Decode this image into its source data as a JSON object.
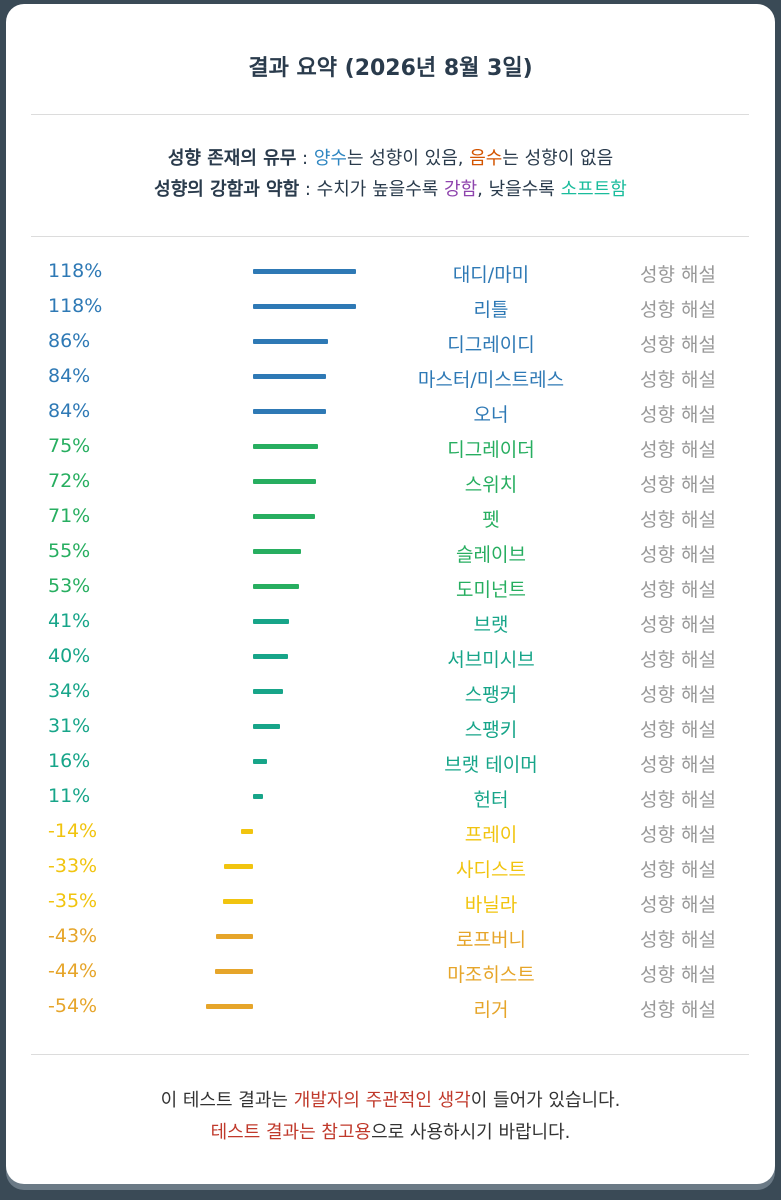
{
  "title": "결과 요약 (2026년 8월 3일)",
  "legend": {
    "line1": {
      "label": "성향 존재의 유무",
      "sep": " : ",
      "positive": "양수",
      "text_a": "는 성향이 있음, ",
      "negative": "음수",
      "text_b": "는 성향이 없음"
    },
    "line2": {
      "label": "성향의 강함과 약함",
      "sep": " : 수치가 높을수록 ",
      "strong": "강함",
      "text_a": ", 낮을수록 ",
      "soft": "소프트함"
    }
  },
  "colors": {
    "blue": "#2e86c1",
    "orange": "#d35400",
    "purple": "#8e44ad",
    "teal": "#1abc9c",
    "red": "#c0392b"
  },
  "results": [
    {
      "percent": "118%",
      "value": 118,
      "name": "대디/마미",
      "desc": "성향 해설",
      "color": "#2e79b5"
    },
    {
      "percent": "118%",
      "value": 118,
      "name": "리틀",
      "desc": "성향 해설",
      "color": "#2e79b5"
    },
    {
      "percent": "86%",
      "value": 86,
      "name": "디그레이디",
      "desc": "성향 해설",
      "color": "#2e79b5"
    },
    {
      "percent": "84%",
      "value": 84,
      "name": "마스터/미스트레스",
      "desc": "성향 해설",
      "color": "#2e79b5"
    },
    {
      "percent": "84%",
      "value": 84,
      "name": "오너",
      "desc": "성향 해설",
      "color": "#2e79b5"
    },
    {
      "percent": "75%",
      "value": 75,
      "name": "디그레이더",
      "desc": "성향 해설",
      "color": "#27ae60"
    },
    {
      "percent": "72%",
      "value": 72,
      "name": "스위치",
      "desc": "성향 해설",
      "color": "#27ae60"
    },
    {
      "percent": "71%",
      "value": 71,
      "name": "펫",
      "desc": "성향 해설",
      "color": "#27ae60"
    },
    {
      "percent": "55%",
      "value": 55,
      "name": "슬레이브",
      "desc": "성향 해설",
      "color": "#27ae60"
    },
    {
      "percent": "53%",
      "value": 53,
      "name": "도미넌트",
      "desc": "성향 해설",
      "color": "#27ae60"
    },
    {
      "percent": "41%",
      "value": 41,
      "name": "브랫",
      "desc": "성향 해설",
      "color": "#17a589"
    },
    {
      "percent": "40%",
      "value": 40,
      "name": "서브미시브",
      "desc": "성향 해설",
      "color": "#17a589"
    },
    {
      "percent": "34%",
      "value": 34,
      "name": "스팽커",
      "desc": "성향 해설",
      "color": "#17a589"
    },
    {
      "percent": "31%",
      "value": 31,
      "name": "스팽키",
      "desc": "성향 해설",
      "color": "#17a589"
    },
    {
      "percent": "16%",
      "value": 16,
      "name": "브랫 테이머",
      "desc": "성향 해설",
      "color": "#17a589"
    },
    {
      "percent": "11%",
      "value": 11,
      "name": "헌터",
      "desc": "성향 해설",
      "color": "#17a589"
    },
    {
      "percent": "-14%",
      "value": -14,
      "name": "프레이",
      "desc": "성향 해설",
      "color": "#f1c40f"
    },
    {
      "percent": "-33%",
      "value": -33,
      "name": "사디스트",
      "desc": "성향 해설",
      "color": "#f1c40f"
    },
    {
      "percent": "-35%",
      "value": -35,
      "name": "바닐라",
      "desc": "성향 해설",
      "color": "#f1c40f"
    },
    {
      "percent": "-43%",
      "value": -43,
      "name": "로프버니",
      "desc": "성향 해설",
      "color": "#e6a52a"
    },
    {
      "percent": "-44%",
      "value": -44,
      "name": "마조히스트",
      "desc": "성향 해설",
      "color": "#e6a52a"
    },
    {
      "percent": "-54%",
      "value": -54,
      "name": "리거",
      "desc": "성향 해설",
      "color": "#e6a52a"
    }
  ],
  "footer": {
    "line1_a": "이 테스트 결과는 ",
    "line1_highlight": "개발자의 주관적인 생각",
    "line1_b": "이 들어가 있습니다.",
    "line2_highlight1": "테스트 결과는 참고용",
    "line2_rest": "으로 사용하시기 바랍니다."
  }
}
